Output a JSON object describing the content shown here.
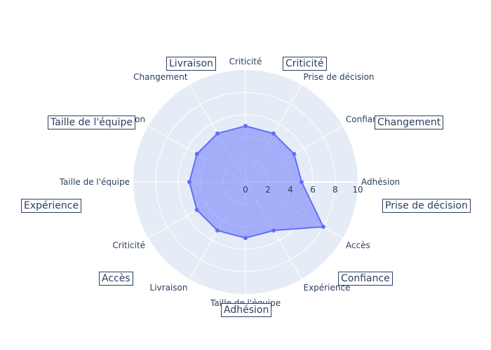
{
  "chart_data": {
    "type": "radar",
    "axis_labels": [
      "Adhésion",
      "Confiance",
      "Prise de décision",
      "Criticité",
      "Changement",
      "Livraison",
      "Taille de l'équipe",
      "Criticité",
      "Livraison",
      "Taille de l'équipe",
      "Expérience",
      "Accès"
    ],
    "values": [
      5,
      5,
      5,
      5,
      5,
      5,
      5,
      5,
      5,
      5,
      5,
      8
    ],
    "radial_range": [
      0,
      10
    ],
    "radial_ticks": [
      "0",
      "2",
      "4",
      "6",
      "8",
      "10"
    ],
    "annotations": [
      "Criticité",
      "Changement",
      "Prise de décision",
      "Confiance",
      "Adhésion",
      "Accès",
      "Expérience",
      "Taille de l'équipe",
      "Livraison"
    ],
    "colors": {
      "fill": "#636efa",
      "line": "#636efa",
      "background": "#e5ecf6",
      "grid": "#ffffff",
      "text": "#2a3f5f"
    }
  }
}
